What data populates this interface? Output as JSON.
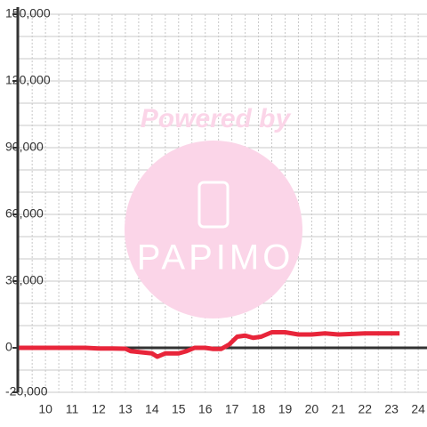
{
  "chart_data": {
    "type": "line",
    "watermark": {
      "top": "Powered by",
      "logo": "PAPIMO"
    },
    "x": [
      9,
      10,
      11,
      11.5,
      12,
      12.5,
      13,
      13.2,
      13.6,
      14,
      14.2,
      14.5,
      15,
      15.3,
      15.6,
      16,
      16.3,
      16.6,
      16.9,
      17.2,
      17.5,
      17.8,
      18.1,
      18.5,
      19,
      19.5,
      20,
      20.5,
      21,
      22,
      23.3
    ],
    "series": [
      {
        "color": "#e8253a",
        "values": [
          0,
          0,
          0,
          0,
          -300,
          -300,
          -400,
          -1500,
          -2000,
          -2500,
          -4000,
          -2500,
          -2500,
          -1500,
          0,
          0,
          -500,
          -500,
          1500,
          5000,
          5500,
          4500,
          5000,
          7000,
          7000,
          6000,
          6000,
          6500,
          6000,
          6500,
          6500
        ]
      }
    ],
    "xlim": [
      8.96,
      24.33
    ],
    "ylim": [
      -20000,
      150000
    ],
    "xticks": [
      10,
      11,
      12,
      13,
      14,
      15,
      16,
      17,
      18,
      19,
      20,
      21,
      22,
      23,
      24
    ],
    "yticks": [
      {
        "value": -20000,
        "label": "-20,000"
      },
      0,
      {
        "value": 30000,
        "label": "30,000"
      },
      {
        "value": 60000,
        "label": "60,000"
      },
      {
        "value": 90000,
        "label": "90,000"
      },
      {
        "value": 120000,
        "label": "120,000"
      },
      {
        "value": 150000,
        "label": "150,000"
      }
    ],
    "ygrid": [
      -10000,
      10000,
      20000,
      40000,
      50000,
      70000,
      80000,
      100000,
      110000,
      130000,
      140000
    ],
    "grid": true
  }
}
